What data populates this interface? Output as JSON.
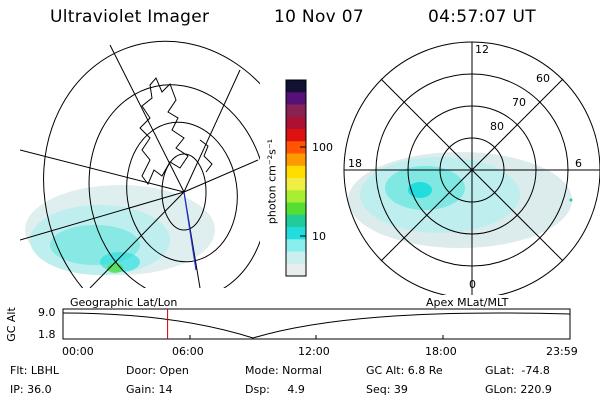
{
  "header": {
    "title": "Ultraviolet Imager",
    "date": "10 Nov 07",
    "time": "04:57:07 UT"
  },
  "left_panel": {
    "label": "Geographic Lat/Lon"
  },
  "right_panel": {
    "label": "Apex MLat/MLT",
    "lat_labels": [
      "80",
      "70",
      "60"
    ],
    "mlt_labels": [
      "12",
      "18",
      "6",
      "0"
    ]
  },
  "colorbar": {
    "label": "photon cm⁻²s⁻¹",
    "ticks": [
      "100",
      "10"
    ],
    "colors": [
      "#111133",
      "#551177",
      "#882255",
      "#aa1133",
      "#dd1111",
      "#ff5500",
      "#ff9900",
      "#ffdd00",
      "#eeee44",
      "#aaee33",
      "#55dd33",
      "#22cc99",
      "#22dddd",
      "#88eeee",
      "#cceeee",
      "#e8eeee"
    ]
  },
  "altitude_plot": {
    "ylabel": "GC Alt",
    "ymax": "9.0",
    "ymin": "1.8",
    "xticks": [
      "00:00",
      "06:00",
      "12:00",
      "18:00",
      "23:59"
    ],
    "current_time_hours": 4.95
  },
  "info": {
    "flt": "Flt: LBHL",
    "ip": "IP: 36.0",
    "door": "Door: Open",
    "gain": "Gain: 14",
    "mode": "Mode: Normal",
    "dsp": "Dsp:     4.9",
    "gcalt": "GC Alt: 6.8 Re",
    "seq": "Seq: 39",
    "glat": "GLat:  -74.8",
    "glon": "GLon: 220.9"
  },
  "colors": {
    "aurora": "#22dddd",
    "aurora_light": "#bfeeee",
    "marker": "#cc0000"
  }
}
